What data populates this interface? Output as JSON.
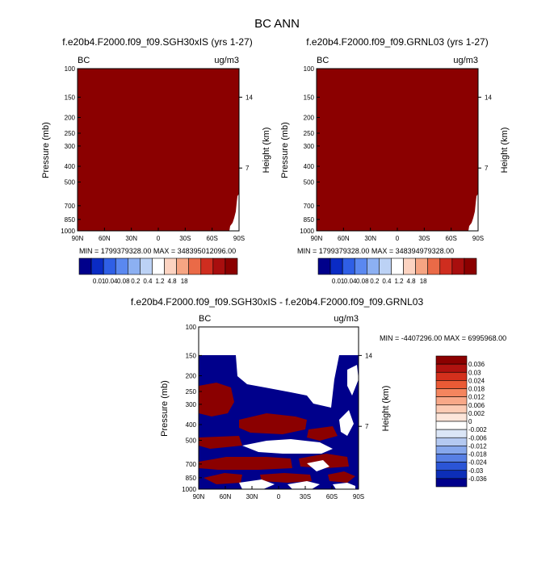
{
  "figure_title": "BC ANN",
  "colors": {
    "dark_red": "#8b0000",
    "dark_blue": "#00008b",
    "frame": "#000000"
  },
  "chart_data": [
    {
      "type": "heatmap",
      "title": "f.e20b4.F2000.f09_f09.SGH30xIS (yrs 1-27)",
      "left_string": "BC",
      "right_string": "ug/m3",
      "ylabel": "Pressure (mb)",
      "ylabel_right": "Height (km)",
      "x_ticks": [
        "90N",
        "60N",
        "30N",
        "0",
        "30S",
        "60S",
        "90S"
      ],
      "y_ticks": [
        "100",
        "150",
        "200",
        "250",
        "300",
        "400",
        "500",
        "700",
        "850",
        "1000"
      ],
      "height_ticks": [
        "14",
        "7"
      ],
      "ylim": [
        1000,
        100
      ],
      "min_max": "MIN = 1799379328.00   MAX = 34839501209 6.00",
      "colorbar_labels": [
        "0.01",
        "0.04",
        "0.08",
        "0.2",
        "0.4",
        "1.2",
        "4.8",
        "18"
      ],
      "colorbar_colors": [
        "#00008b",
        "#0a2bc4",
        "#2f5fe6",
        "#5a88f0",
        "#8cb0f2",
        "#bcd2f5",
        "#ffffff",
        "#fcd3c1",
        "#f6a583",
        "#ea6a47",
        "#cf2d1f",
        "#a80e0e",
        "#8b0000"
      ],
      "note": "field saturated at highest level across domain"
    },
    {
      "type": "heatmap",
      "title": "f.e20b4.F2000.f09_f09.GRNL03 (yrs 1-27)",
      "left_string": "BC",
      "right_string": "ug/m3",
      "ylabel": "Pressure (mb)",
      "ylabel_right": "Height (km)",
      "x_ticks": [
        "90N",
        "60N",
        "30N",
        "0",
        "30S",
        "60S",
        "90S"
      ],
      "y_ticks": [
        "100",
        "150",
        "200",
        "250",
        "300",
        "400",
        "500",
        "700",
        "850",
        "1000"
      ],
      "height_ticks": [
        "14",
        "7"
      ],
      "ylim": [
        1000,
        100
      ],
      "min_max": "MIN = 1799379328.00   MAX = 34839497932 8.00",
      "colorbar_labels": [
        "0.01",
        "0.04",
        "0.08",
        "0.2",
        "0.4",
        "1.2",
        "4.8",
        "18"
      ],
      "colorbar_colors": [
        "#00008b",
        "#0a2bc4",
        "#2f5fe6",
        "#5a88f0",
        "#8cb0f2",
        "#bcd2f5",
        "#ffffff",
        "#fcd3c1",
        "#f6a583",
        "#ea6a47",
        "#cf2d1f",
        "#a80e0e",
        "#8b0000"
      ]
    },
    {
      "type": "heatmap",
      "title": "f.e20b4.F2000.f09_f09.SGH30xIS - f.e20b4.F2000.f09_f09.GRNL03",
      "left_string": "BC",
      "right_string": "ug/m3",
      "ylabel": "Pressure (mb)",
      "ylabel_right": "Height (km)",
      "x_ticks": [
        "90N",
        "60N",
        "30N",
        "0",
        "30S",
        "60S",
        "90S"
      ],
      "y_ticks": [
        "100",
        "150",
        "200",
        "250",
        "300",
        "400",
        "500",
        "700",
        "850",
        "1000"
      ],
      "height_ticks": [
        "14",
        "7"
      ],
      "ylim": [
        1000,
        100
      ],
      "min_max": "MIN = -4407296.00   MAX = 6995968.00",
      "colorbar_labels": [
        "0.036",
        "0.03",
        "0.024",
        "0.018",
        "0.012",
        "0.006",
        "0.002",
        "0",
        "-0.002",
        "-0.006",
        "-0.012",
        "-0.018",
        "-0.024",
        "-0.03",
        "-0.036"
      ],
      "colorbar_colors": [
        "#8b0000",
        "#b0120f",
        "#d4301c",
        "#ea5a35",
        "#f4855e",
        "#f8a888",
        "#fccbb4",
        "#fde6da",
        "#ffffff",
        "#dbe6f7",
        "#b4c9f1",
        "#86a7ec",
        "#577fe4",
        "#2b55d6",
        "#0c2eb8",
        "#00008b"
      ]
    }
  ]
}
